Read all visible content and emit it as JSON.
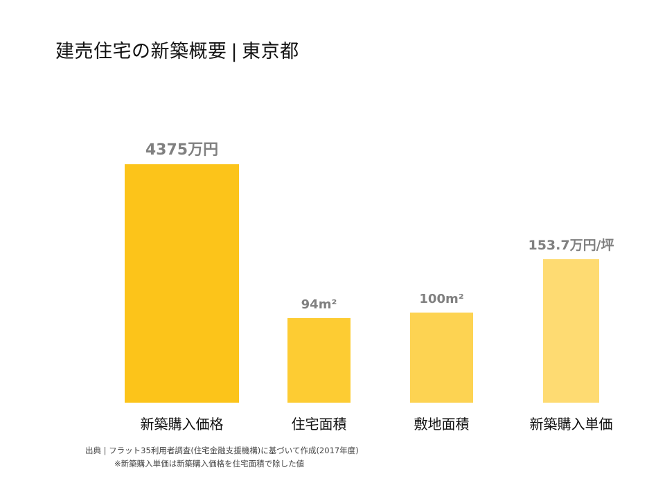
{
  "title": {
    "main": "建売住宅の新築概要",
    "separator": "|",
    "region": "東京都"
  },
  "chart_data": {
    "type": "bar",
    "categories": [
      "新築購入価格",
      "住宅面積",
      "敷地面積",
      "新築購入単価"
    ],
    "values": [
      4375,
      94,
      100,
      153.7
    ],
    "value_labels": [
      "4375万円",
      "94m²",
      "100m²",
      "153.7万円/坪"
    ],
    "units": [
      "万円",
      "m²",
      "m²",
      "万円/坪"
    ],
    "bar_colors": [
      "#FCC41A",
      "#FDCC33",
      "#FDD352",
      "#FEDB72"
    ],
    "label_color": "#808080",
    "title": "建売住宅の新築概要 | 東京都",
    "xlabel": "",
    "ylabel": "",
    "grid": false,
    "legend": "none"
  },
  "footer": {
    "source": "出典 | フラット35利用者調査(住宅金融支援機構)に基づいて作成(2017年度)",
    "note": "※新築購入単価は新築購入価格を住宅面積で除した値"
  }
}
